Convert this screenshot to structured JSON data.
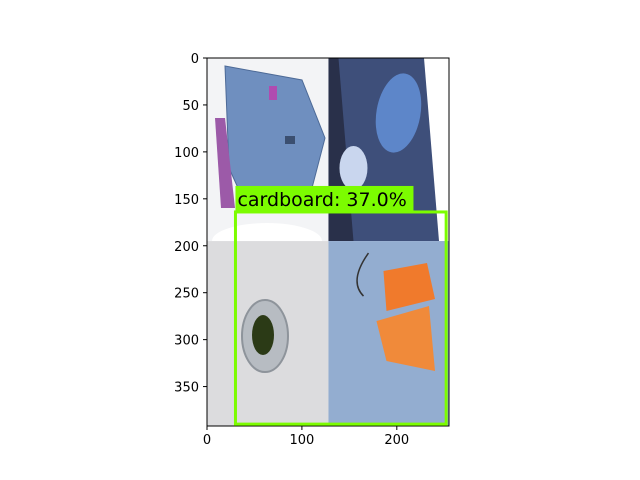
{
  "figure": {
    "image_extent": {
      "x": [
        0,
        255
      ],
      "y": [
        0,
        392
      ]
    },
    "x_ticks": [
      0,
      100,
      200
    ],
    "y_ticks": [
      0,
      50,
      100,
      150,
      200,
      250,
      300,
      350
    ],
    "tiles": [
      {
        "name": "top-left",
        "x": [
          0,
          128
        ],
        "y": [
          0,
          195
        ],
        "base": "#f3f4f6",
        "accent": "#6f8fbf",
        "description_icon": "cardboard-icon"
      },
      {
        "name": "top-right",
        "x": [
          128,
          255
        ],
        "y": [
          0,
          195
        ],
        "base": "#29304a",
        "accent": "#5d86c9",
        "description_icon": "wrapper-icon"
      },
      {
        "name": "bottom-left",
        "x": [
          0,
          128
        ],
        "y": [
          195,
          392
        ],
        "base": "#dcdcde",
        "accent": "#2b3a16",
        "description_icon": "nut-icon"
      },
      {
        "name": "bottom-right",
        "x": [
          128,
          255
        ],
        "y": [
          195,
          392
        ],
        "base": "#93add0",
        "accent": "#f07a2c",
        "description_icon": "orange-tape-icon"
      }
    ],
    "detections": [
      {
        "label": "cardboard: 37.0%",
        "box": {
          "x": [
            30,
            252
          ],
          "y": [
            164,
            390
          ]
        },
        "color": "#7cfc00"
      }
    ]
  }
}
